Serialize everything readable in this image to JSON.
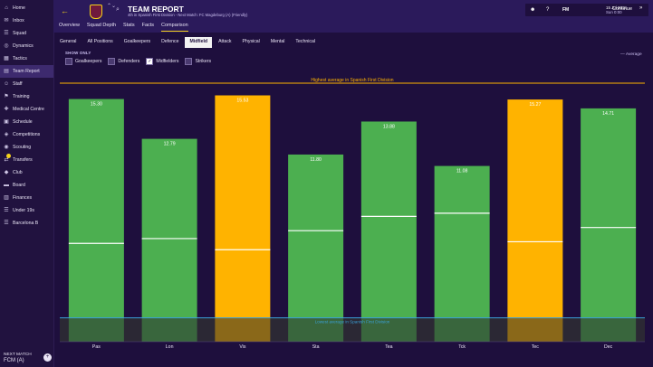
{
  "sidebar": {
    "items": [
      {
        "label": "Home",
        "icon": "home-icon",
        "glyph": "⌂"
      },
      {
        "label": "Inbox",
        "icon": "inbox-icon",
        "glyph": "✉"
      },
      {
        "label": "Squad",
        "icon": "squad-icon",
        "glyph": "☰"
      },
      {
        "label": "Dynamics",
        "icon": "dynamics-icon",
        "glyph": "◎"
      },
      {
        "label": "Tactics",
        "icon": "tactics-icon",
        "glyph": "▦"
      },
      {
        "label": "Team Report",
        "icon": "team-report-icon",
        "glyph": "▤",
        "active": true
      },
      {
        "label": "Staff",
        "icon": "staff-icon",
        "glyph": "☺"
      },
      {
        "label": "Training",
        "icon": "training-icon",
        "glyph": "⚑"
      },
      {
        "label": "Medical Centre",
        "icon": "medical-icon",
        "glyph": "✚"
      },
      {
        "label": "Schedule",
        "icon": "schedule-icon",
        "glyph": "▣"
      },
      {
        "label": "Competitions",
        "icon": "competitions-icon",
        "glyph": "◈"
      },
      {
        "label": "Scouting",
        "icon": "scouting-icon",
        "glyph": "◉"
      },
      {
        "label": "Transfers",
        "icon": "transfers-icon",
        "glyph": "⇄",
        "badge": true
      },
      {
        "label": "Club",
        "icon": "club-icon",
        "glyph": "◆"
      },
      {
        "label": "Board",
        "icon": "board-icon",
        "glyph": "▬"
      },
      {
        "label": "Finances",
        "icon": "finances-icon",
        "glyph": "▥"
      },
      {
        "label": "Under 19s",
        "icon": "under19-icon",
        "glyph": "☰"
      },
      {
        "label": "Barcelona B",
        "icon": "barcelona-b-icon",
        "glyph": "☰"
      }
    ],
    "next_match_label": "NEXT MATCH",
    "next_match_value": "FCM (A)",
    "add_glyph": "+"
  },
  "header": {
    "back_glyph": "←",
    "title": "TEAM REPORT",
    "subtitle": "4th in Spanish First Division - Next Match: FC Magdeburg (A) (Friendly)",
    "arrows_glyph": "⌃⌄",
    "search_glyph": "⌕",
    "tabs": [
      {
        "label": "Overview"
      },
      {
        "label": "Squad Depth"
      },
      {
        "label": "Stats"
      },
      {
        "label": "Facts"
      },
      {
        "label": "Comparison",
        "active": true
      }
    ],
    "date_line1": "15 Jul 2018",
    "date_line2": "Sun 0:00",
    "continue_label": "Continue",
    "continue_glyph": "»",
    "icon_glyphs": [
      "☻",
      "?",
      "FM"
    ]
  },
  "subtabs": [
    {
      "label": "General"
    },
    {
      "label": "All Positions"
    },
    {
      "label": "Goalkeepers"
    },
    {
      "label": "Defence"
    },
    {
      "label": "Midfield",
      "active": true
    },
    {
      "label": "Attack"
    },
    {
      "label": "Physical"
    },
    {
      "label": "Mental"
    },
    {
      "label": "Technical"
    }
  ],
  "filters": {
    "show_only_label": "SHOW ONLY",
    "average_label": "— Average",
    "items": [
      {
        "label": "Goalkeepers",
        "checked": false
      },
      {
        "label": "Defenders",
        "checked": false
      },
      {
        "label": "Midfielders",
        "checked": true
      },
      {
        "label": "Strikers",
        "checked": false
      }
    ],
    "check_glyph": "✓"
  },
  "chart_data": {
    "type": "bar",
    "title": "",
    "xlabel": "",
    "ylabel": "",
    "ylim": [
      0,
      16.3
    ],
    "categories": [
      "Pas",
      "Lon",
      "Vis",
      "Sta",
      "Tea",
      "Tck",
      "Tec",
      "Dec"
    ],
    "values": [
      15.3,
      12.79,
      15.53,
      11.8,
      13.88,
      11.08,
      15.27,
      14.71
    ],
    "display_labels": [
      "15.30",
      "12.79",
      "15.53",
      "11.80",
      "13.88",
      "11.08",
      "15.27",
      "14.71"
    ],
    "highlight": [
      false,
      false,
      true,
      false,
      false,
      false,
      true,
      false
    ],
    "averages": [
      6.2,
      6.5,
      5.8,
      7.0,
      7.9,
      8.1,
      6.3,
      7.2
    ],
    "highest_average": 16.3,
    "highest_average_label": "Highest average in Spanish First Division",
    "lowest_average": 1.5,
    "lowest_average_label": "Lowest average in Spanish First Division",
    "colors": {
      "normal": "#4caf50",
      "highlight": "#ffb300",
      "average_line": "#ffffff",
      "highest_line": "#ffb300",
      "lowest_line": "#3aa0d8",
      "plot_bg": "#1e0f3d"
    }
  }
}
